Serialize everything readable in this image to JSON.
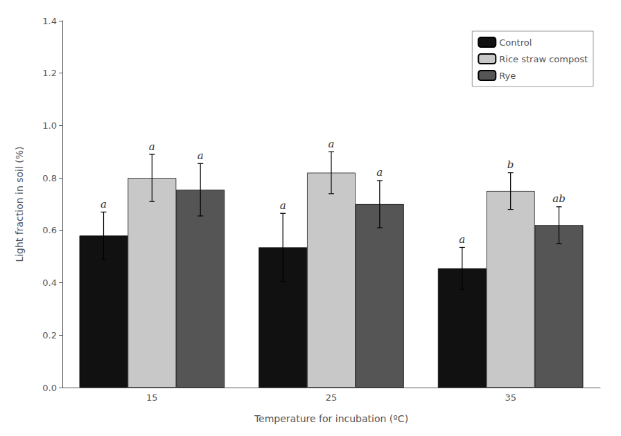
{
  "chart_data": {
    "type": "bar",
    "xlabel": "Temperature for incubation (ºC)",
    "ylabel": "Light fraction in soil (%)",
    "categories": [
      "15",
      "25",
      "35"
    ],
    "series": [
      {
        "name": "Control",
        "color": "#111111",
        "values": [
          0.58,
          0.535,
          0.455
        ],
        "errors": [
          0.09,
          0.13,
          0.08
        ],
        "letters": [
          "a",
          "a",
          "a"
        ]
      },
      {
        "name": "Rice straw compost",
        "color": "#c8c8c8",
        "values": [
          0.8,
          0.82,
          0.75
        ],
        "errors": [
          0.09,
          0.08,
          0.07
        ],
        "letters": [
          "a",
          "a",
          "b"
        ]
      },
      {
        "name": "Rye",
        "color": "#555555",
        "values": [
          0.755,
          0.7,
          0.62
        ],
        "errors": [
          0.1,
          0.09,
          0.07
        ],
        "letters": [
          "a",
          "a",
          "ab"
        ]
      }
    ],
    "ylim": [
      0,
      1.4
    ],
    "yticks": [
      {
        "value": 0,
        "label": "0.0"
      },
      0.2,
      0.4,
      0.6,
      0.8,
      {
        "value": 1,
        "label": "1.0"
      },
      1.2,
      1.4
    ],
    "grid": false,
    "legend": "upper right"
  }
}
